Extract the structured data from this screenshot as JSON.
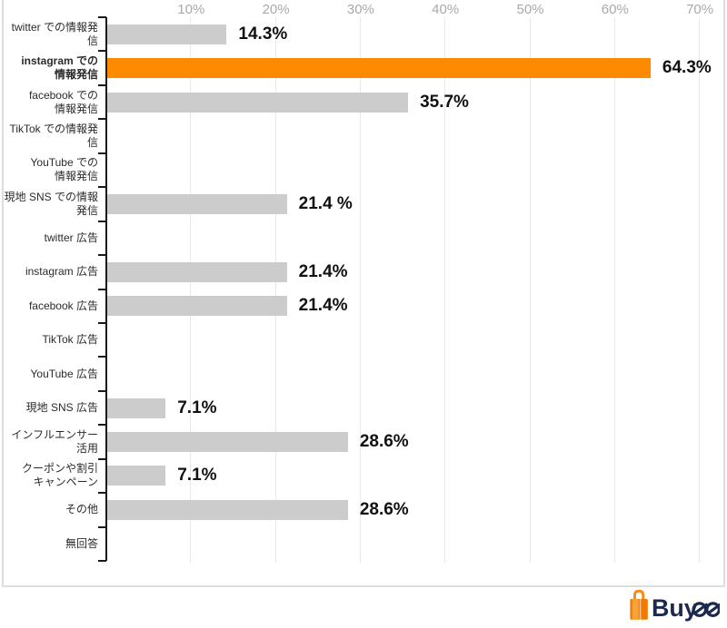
{
  "chart_data": {
    "type": "bar",
    "orientation": "horizontal",
    "title": "",
    "xlabel": "",
    "ylabel": "",
    "x_axis": {
      "tick_labels": [
        "10%",
        "20%",
        "30%",
        "40%",
        "50%",
        "60%",
        "70%"
      ],
      "tick_values": [
        10,
        20,
        30,
        40,
        50,
        60,
        70
      ],
      "max_percent": 70,
      "grid": true
    },
    "categories": [
      "twitter での情報発信",
      "instagram での\n情報発信",
      "facebook での\n情報発信",
      "TikTok での情報発信",
      "YouTube での\n情報発信",
      "現地 SNS での情報発信",
      "twitter 広告",
      "instagram 広告",
      "facebook 広告",
      "TikTok 広告",
      "YouTube 広告",
      "現地 SNS 広告",
      "インフルエンサー活用",
      "クーポンや割引\nキャンペーン",
      "その他",
      "無回答"
    ],
    "values": [
      14.3,
      64.3,
      35.7,
      0,
      0,
      21.4,
      0,
      21.4,
      21.4,
      0,
      0,
      7.1,
      28.6,
      7.1,
      28.6,
      0
    ],
    "value_labels": [
      "14.3%",
      "64.3%",
      "35.7%",
      "",
      "",
      "21.4 %",
      "",
      "21.4%",
      "21.4%",
      "",
      "",
      "7.1%",
      "28.6%",
      "7.1%",
      "28.6%",
      ""
    ],
    "highlight_index": 1,
    "colors": {
      "bar": "#cccccc",
      "highlight": "#fd8a00",
      "gridline": "#e9e9e9",
      "axis": "#1a1a1a",
      "tick_text": "#a9a9a9",
      "value_text": "#111111",
      "category_text": "#2b2b2b"
    },
    "legend": null
  },
  "footer": {
    "brand": "Buyee",
    "brand_prefix": "Buy",
    "brand_stylized_suffix": "ee",
    "logo_icon": "shopping-bag-icon",
    "logo_icon_color": "#f68b1f",
    "logo_icon_color_dark": "#ef7c00",
    "logo_text_color": "#1c2950"
  }
}
